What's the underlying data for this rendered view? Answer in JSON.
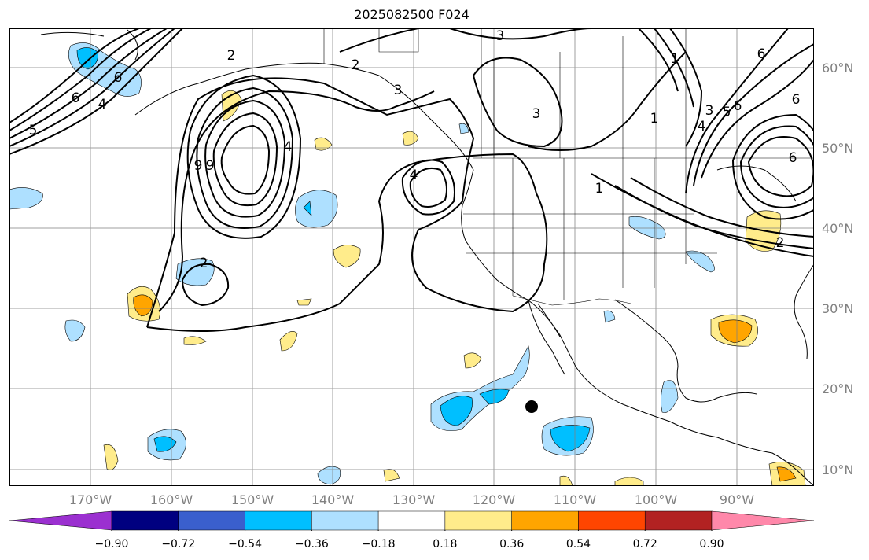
{
  "title": "2025082500 F024",
  "map": {
    "region": "Northeast Pacific / North America",
    "lon_range": [
      -180,
      -80
    ],
    "lat_range": [
      7.5,
      65
    ],
    "gridline_color": "#808080",
    "contour_color": "#000000"
  },
  "lat_ticks": [
    "60°N",
    "50°N",
    "40°N",
    "30°N",
    "20°N",
    "10°N"
  ],
  "lon_ticks": [
    "170°W",
    "160°W",
    "150°W",
    "140°W",
    "130°W",
    "120°W",
    "110°W",
    "100°W",
    "90°W"
  ],
  "contour_labels": [
    "2",
    "3",
    "2",
    "3",
    "1",
    "6",
    "6",
    "5",
    "4",
    "6",
    "9",
    "9",
    "4",
    "4",
    "2",
    "3",
    "1",
    "5",
    "6",
    "4",
    "3",
    "6",
    "6",
    "2",
    "1"
  ],
  "colorbar": {
    "tick_labels": [
      "−0.90",
      "−0.72",
      "−0.54",
      "−0.36",
      "−0.18",
      "0.18",
      "0.36",
      "0.54",
      "0.72",
      "0.90"
    ],
    "colors": [
      "#9b30d0",
      "#000080",
      "#3a5fcd",
      "#00bfff",
      "#aee0ff",
      "#ffffff",
      "#ffec8b",
      "#ffa500",
      "#ff4500",
      "#b22222",
      "#ff88aa"
    ]
  }
}
